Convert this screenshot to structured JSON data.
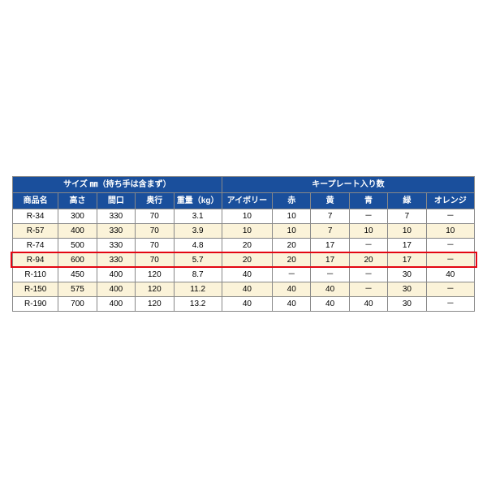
{
  "table": {
    "header_bg": "#1a4f9c",
    "header_fg": "#ffffff",
    "row_alt_bg": "#fbf3d9",
    "highlight_color": "#e30613",
    "group1_label": "サイズ ㎜（持ち手は含まず）",
    "group2_label": "キープレート入り数",
    "columns": [
      "商品名",
      "高さ",
      "間口",
      "奥行",
      "重量（kg）",
      "アイボリー",
      "赤",
      "黄",
      "青",
      "緑",
      "オレンジ"
    ],
    "col_widths_pct": [
      9.5,
      8,
      8,
      8,
      10,
      10.5,
      8,
      8,
      8,
      8,
      10
    ],
    "rows": [
      [
        "R-34",
        "300",
        "330",
        "70",
        "3.1",
        "10",
        "10",
        "7",
        "－",
        "7",
        "－"
      ],
      [
        "R-57",
        "400",
        "330",
        "70",
        "3.9",
        "10",
        "10",
        "7",
        "10",
        "10",
        "10"
      ],
      [
        "R-74",
        "500",
        "330",
        "70",
        "4.8",
        "20",
        "20",
        "17",
        "－",
        "17",
        "－"
      ],
      [
        "R-94",
        "600",
        "330",
        "70",
        "5.7",
        "20",
        "20",
        "17",
        "20",
        "17",
        "－"
      ],
      [
        "R-110",
        "450",
        "400",
        "120",
        "8.7",
        "40",
        "－",
        "－",
        "－",
        "30",
        "40"
      ],
      [
        "R-150",
        "575",
        "400",
        "120",
        "11.2",
        "40",
        "40",
        "40",
        "－",
        "30",
        "－"
      ],
      [
        "R-190",
        "700",
        "400",
        "120",
        "13.2",
        "40",
        "40",
        "40",
        "40",
        "30",
        "－"
      ]
    ],
    "highlight_row_index": 3
  }
}
